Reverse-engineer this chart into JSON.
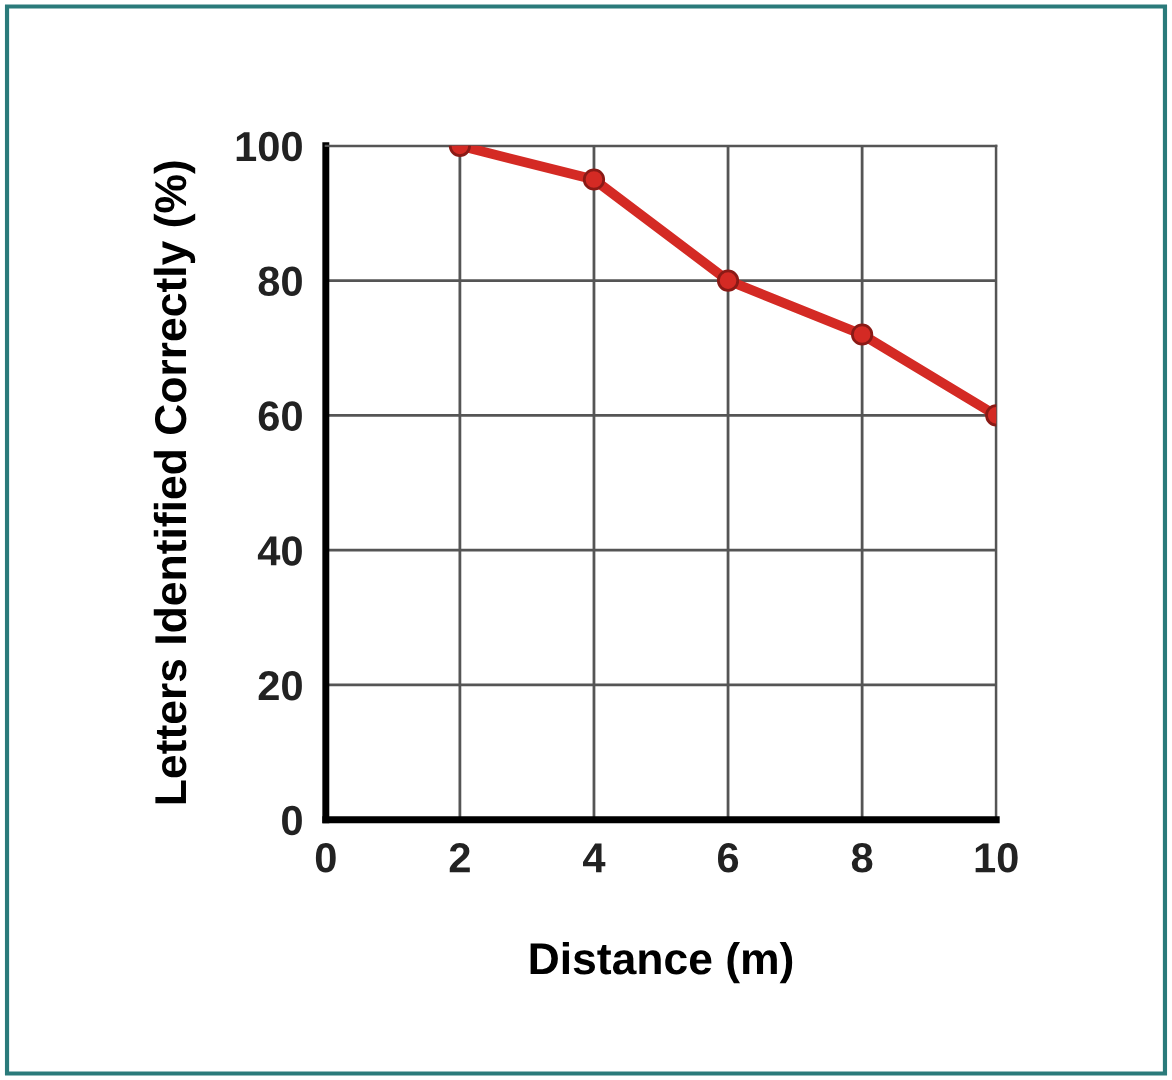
{
  "chart_data": {
    "type": "line",
    "xlabel": "Distance (m)",
    "ylabel": "Letters Identified Correctly (%)",
    "x": [
      2,
      4,
      6,
      8,
      10
    ],
    "series": [
      {
        "color": "#d42a24",
        "values": [
          100,
          95,
          80,
          72,
          60
        ]
      }
    ],
    "xlim": [
      0,
      10
    ],
    "xticks": [
      0,
      2,
      4,
      6,
      8,
      10
    ],
    "ylim": [
      0,
      100
    ],
    "yticks": [
      0,
      20,
      40,
      60,
      80,
      100
    ],
    "grid": true,
    "marker": "circle",
    "line_style": "solid"
  }
}
